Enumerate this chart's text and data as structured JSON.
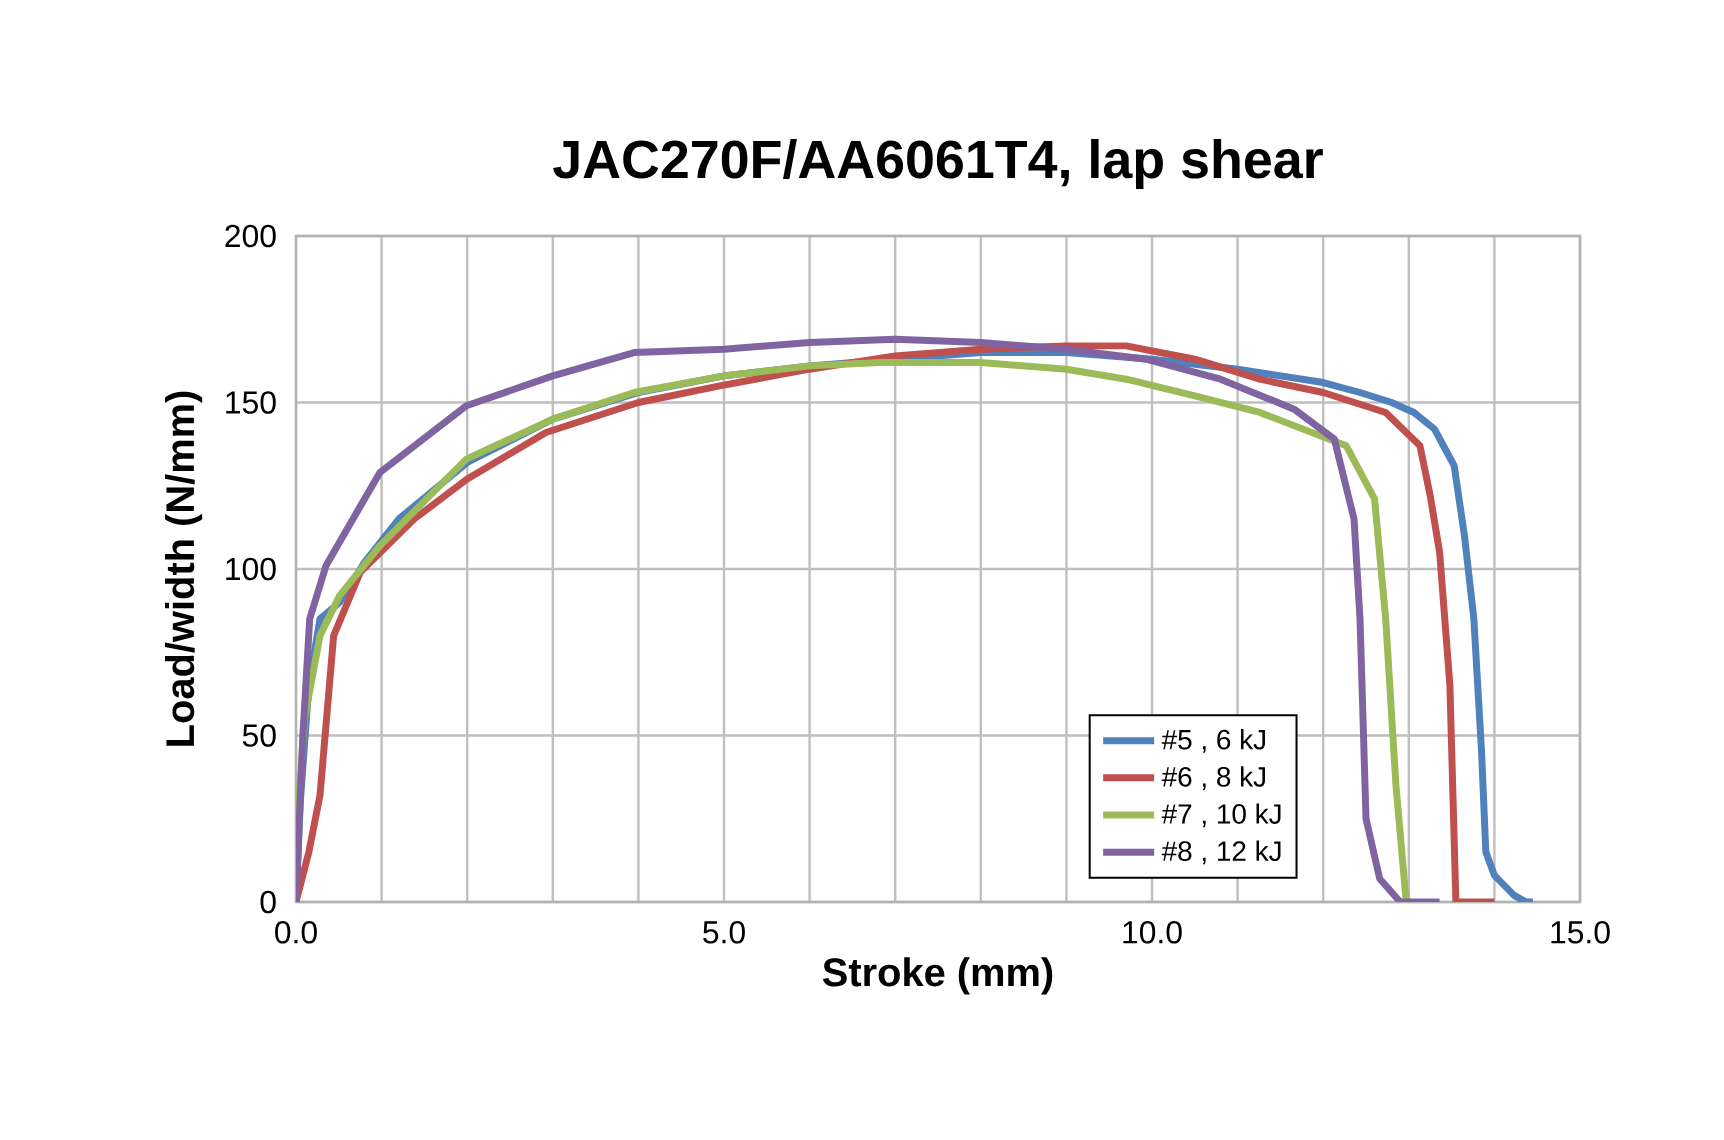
{
  "chart_data": {
    "type": "line",
    "title": "JAC270F/AA6061T4, lap shear",
    "xlabel": "Stroke (mm)",
    "ylabel": "Load/width (N/mm)",
    "xlim": [
      0,
      15
    ],
    "ylim": [
      0,
      200
    ],
    "xticks": [
      {
        "value": 0,
        "label": "0.0"
      },
      {
        "value": 1,
        "label": null
      },
      {
        "value": 2,
        "label": null
      },
      {
        "value": 3,
        "label": null
      },
      {
        "value": 4,
        "label": null
      },
      {
        "value": 5,
        "label": "5.0"
      },
      {
        "value": 6,
        "label": null
      },
      {
        "value": 7,
        "label": null
      },
      {
        "value": 8,
        "label": null
      },
      {
        "value": 9,
        "label": null
      },
      {
        "value": 10,
        "label": "10.0"
      },
      {
        "value": 11,
        "label": null
      },
      {
        "value": 12,
        "label": null
      },
      {
        "value": 13,
        "label": null
      },
      {
        "value": 14,
        "label": null
      },
      {
        "value": 15,
        "label": "15.0"
      }
    ],
    "yticks": [
      0,
      50,
      100,
      150,
      200
    ],
    "grid": true,
    "legend": "bottom right",
    "series": [
      {
        "name": "#5 , 6 kJ",
        "color": "#4f81bd",
        "x": [
          0,
          0.05,
          0.15,
          0.28,
          0.51,
          0.8,
          1.2,
          2.0,
          3.0,
          4.0,
          5.0,
          6.0,
          7.0,
          8.0,
          9.0,
          10.0,
          11.0,
          12.0,
          12.43,
          12.8,
          13.06,
          13.3,
          13.53,
          13.65,
          13.76,
          13.85,
          13.9,
          14.0,
          14.23,
          14.37,
          14.45
        ],
        "values": [
          0,
          30,
          65,
          85,
          90,
          102,
          115,
          132,
          145,
          153,
          158,
          161,
          163,
          165,
          165,
          163,
          160,
          156,
          153,
          150,
          147,
          142,
          131,
          110,
          85,
          45,
          15,
          8,
          2,
          0,
          0
        ]
      },
      {
        "name": "#6 , 8 kJ",
        "color": "#c0504d",
        "x": [
          0,
          0.15,
          0.28,
          0.44,
          0.75,
          1.38,
          2.0,
          2.92,
          4.0,
          4.95,
          6.0,
          7.0,
          8.0,
          9.0,
          9.7,
          10.5,
          11.26,
          12.0,
          12.73,
          13.13,
          13.25,
          13.36,
          13.48,
          13.55,
          13.8,
          14.0
        ],
        "values": [
          0,
          15,
          32,
          80,
          99,
          115,
          127,
          141,
          150,
          155,
          160,
          164,
          166,
          167,
          167,
          163,
          157,
          153,
          147,
          137,
          122,
          105,
          65,
          0,
          0,
          0
        ]
      },
      {
        "name": "#7 , 10 kJ",
        "color": "#9bbb59",
        "x": [
          0,
          0.1,
          0.28,
          0.51,
          0.98,
          1.99,
          3.0,
          3.95,
          5.0,
          6.0,
          6.82,
          8.0,
          9.0,
          9.7,
          10.5,
          11.26,
          12.27,
          12.6,
          12.73,
          12.85,
          12.97
        ],
        "values": [
          18,
          55,
          80,
          92,
          107,
          133,
          145,
          153,
          158,
          161,
          162,
          162,
          160,
          157,
          152,
          147,
          137,
          121,
          85,
          35,
          0
        ]
      },
      {
        "name": "#8 , 12 kJ",
        "color": "#8064a2",
        "x": [
          0,
          0.08,
          0.16,
          0.35,
          0.98,
          1.99,
          3.0,
          3.95,
          5.0,
          6.0,
          7.0,
          8.0,
          9.0,
          9.93,
          10.8,
          11.66,
          12.13,
          12.36,
          12.43,
          12.5,
          12.66,
          12.9,
          13.36
        ],
        "values": [
          0,
          50,
          85,
          101,
          129,
          149,
          158,
          165,
          166,
          168,
          169,
          168,
          166,
          163,
          157,
          148,
          139,
          115,
          85,
          25,
          7,
          0,
          0
        ]
      }
    ]
  }
}
